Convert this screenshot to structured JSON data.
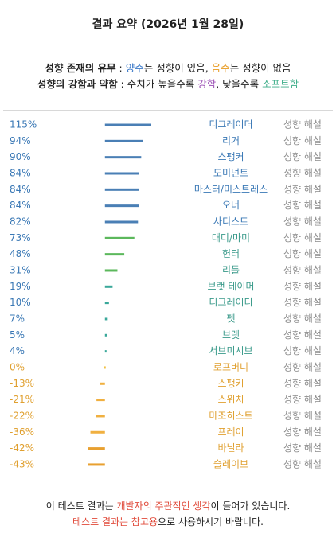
{
  "header": {
    "title": "결과 요약 (2026년 1월 28일)"
  },
  "legend": {
    "line1": {
      "heading": "성향 존재의 유무",
      "sep": " : ",
      "positive": "양수",
      "positive_color": "#3a78c8",
      "mid": "는 성향이 있음, ",
      "negative": "음수",
      "negative_color": "#e89a20",
      "end": "는 성향이 없음"
    },
    "line2": {
      "heading": "성향의 강함과 약함",
      "mid": " : 수치가 높을수록 ",
      "strong": "강함",
      "strong_color": "#9b4fb5",
      "mid2": ", 낮을수록 ",
      "soft": "소프트함",
      "soft_color": "#3fae8a"
    }
  },
  "chart_data": {
    "type": "bar",
    "categories": [
      "디그레이더",
      "리거",
      "스팽커",
      "도미넌트",
      "마스터/미스트레스",
      "오너",
      "사디스트",
      "대디/마미",
      "헌터",
      "리틀",
      "브랫 테이머",
      "디그레이디",
      "펫",
      "브랫",
      "서브미시브",
      "로프버니",
      "스팽키",
      "스위치",
      "마조히스트",
      "프레이",
      "바닐라",
      "슬레이브"
    ],
    "values": [
      115,
      94,
      90,
      84,
      84,
      84,
      82,
      73,
      48,
      31,
      19,
      10,
      7,
      5,
      4,
      0,
      -13,
      -21,
      -22,
      -36,
      -42,
      -43
    ],
    "value_labels": [
      "115%",
      "94%",
      "90%",
      "84%",
      "84%",
      "84%",
      "82%",
      "73%",
      "48%",
      "31%",
      "19%",
      "10%",
      "7%",
      "5%",
      "4%",
      "0%",
      "-13%",
      "-21%",
      "-22%",
      "-36%",
      "-42%",
      "-43%"
    ],
    "colors": [
      "#4a7fb5",
      "#4a7fb5",
      "#4a7fb5",
      "#4a7fb5",
      "#4a7fb5",
      "#4a7fb5",
      "#4a7fb5",
      "#5cb85c",
      "#5cb85c",
      "#5cb85c",
      "#3aa89a",
      "#3aa89a",
      "#3aa89a",
      "#3aa89a",
      "#3aa89a",
      "#f0c040",
      "#f0b040",
      "#f0b040",
      "#f0b040",
      "#f0b040",
      "#e8a030",
      "#e8a030"
    ],
    "label_colors": [
      "#3a78b5",
      "#3a78b5",
      "#3a78b5",
      "#3a78b5",
      "#3a78b5",
      "#3a78b5",
      "#3a78b5",
      "#3a9a8a",
      "#3a9a8a",
      "#3a9a8a",
      "#3a9a8a",
      "#3a9a8a",
      "#3a9a8a",
      "#3a9a8a",
      "#3a9a8a",
      "#e0a030",
      "#e0a030",
      "#e0a030",
      "#e0a030",
      "#e0a030",
      "#e0a030",
      "#e0a030"
    ],
    "value_label_colors": [
      "#3a78b5",
      "#3a78b5",
      "#3a78b5",
      "#3a78b5",
      "#3a78b5",
      "#3a78b5",
      "#3a78b5",
      "#3a78b5",
      "#3a78b5",
      "#3a78b5",
      "#3a78b5",
      "#3a78b5",
      "#3a78b5",
      "#3a78b5",
      "#3a78b5",
      "#e0a030",
      "#e0a030",
      "#e0a030",
      "#e0a030",
      "#e0a030",
      "#e0a030",
      "#e0a030"
    ],
    "xlim": [
      -43,
      115
    ],
    "action_label": "성향 해설"
  },
  "footer": {
    "line1": {
      "pre": "이 테스트 결과는 ",
      "highlight": "개발자의 주관적인 생각",
      "post": "이 들어가 있습니다."
    },
    "line2": {
      "highlight": "테스트 결과는 참고용",
      "post": "으로 사용하시기 바랍니다."
    },
    "highlight_color": "#e04a3a"
  }
}
